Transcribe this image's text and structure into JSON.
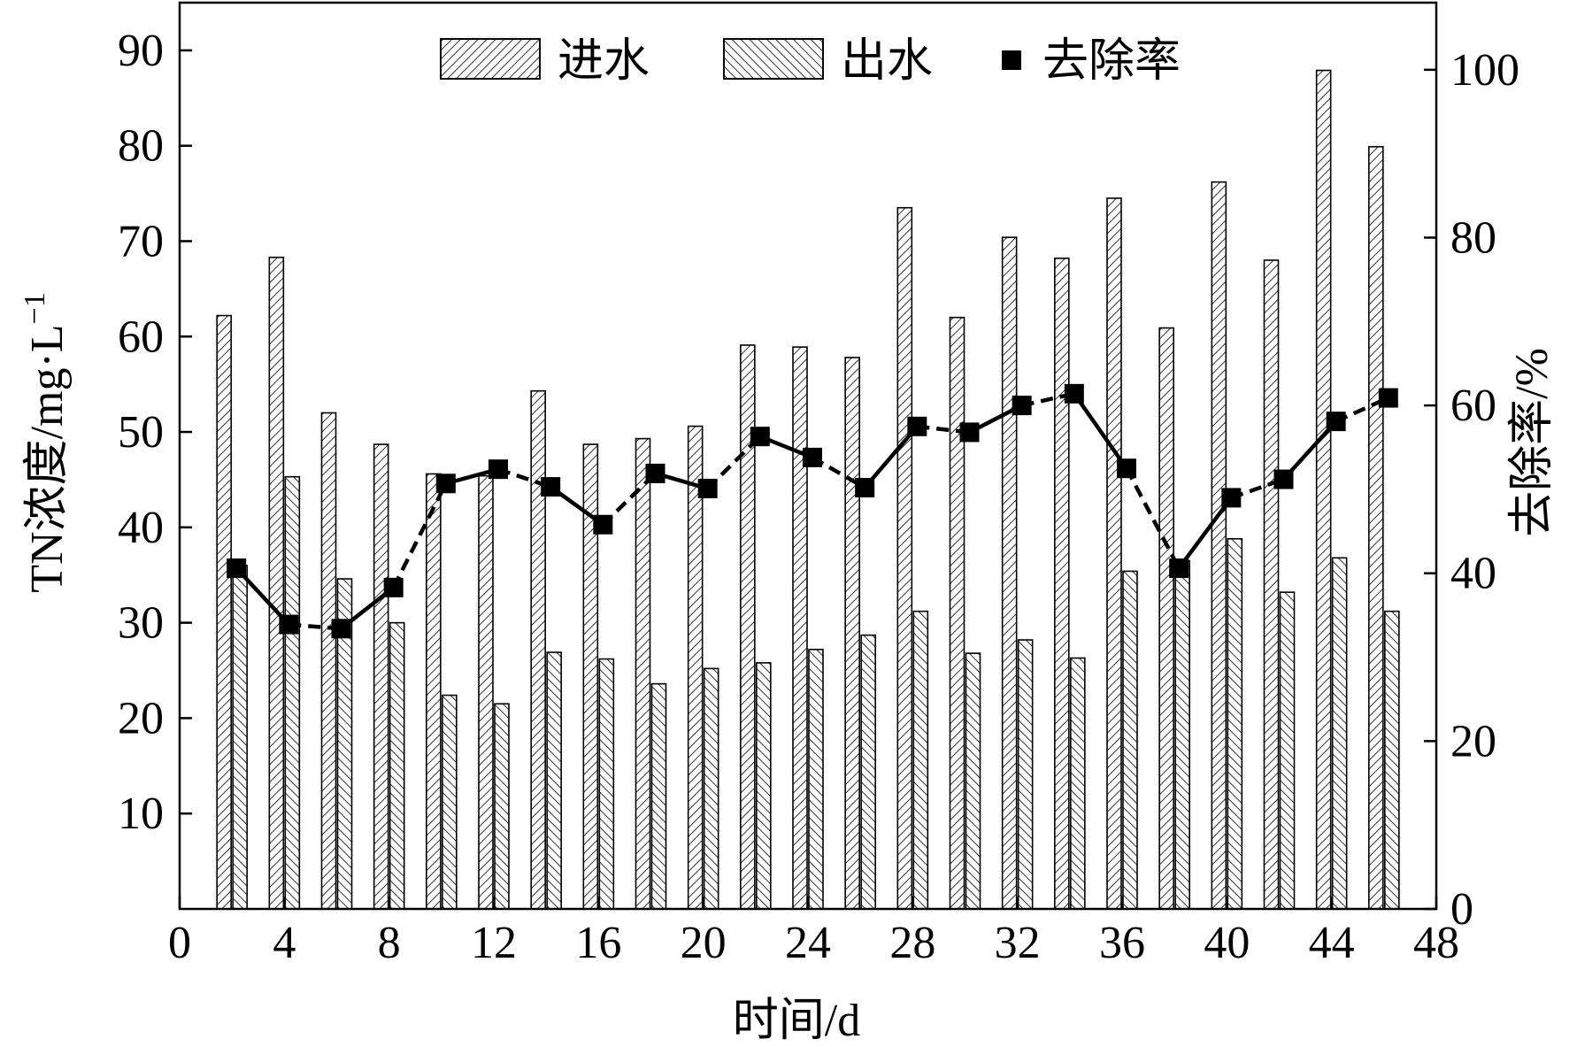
{
  "chart_data": {
    "type": "bar",
    "title": "",
    "xlabel": "时间/d",
    "ylabel": "TN浓度/mg·L",
    "ylabel_sup": "−1",
    "y2label": "去除率/%",
    "xlim": [
      0,
      48
    ],
    "ylim": [
      0,
      95
    ],
    "y2lim": [
      0,
      108
    ],
    "xticks": [
      0,
      4,
      8,
      12,
      16,
      20,
      24,
      28,
      32,
      36,
      40,
      44,
      48
    ],
    "xtick_labels": [
      "0",
      "4",
      "8",
      "12",
      "16",
      "20",
      "24",
      "28",
      "32",
      "36",
      "40",
      "44",
      "48"
    ],
    "yticks": [
      10,
      20,
      30,
      40,
      50,
      60,
      70,
      80,
      90
    ],
    "ytick_labels": [
      "10",
      "20",
      "30",
      "40",
      "50",
      "60",
      "70",
      "80",
      "90"
    ],
    "y2ticks": [
      0,
      20,
      40,
      60,
      80,
      100
    ],
    "y2tick_labels": [
      "0",
      "20",
      "40",
      "60",
      "80",
      "100"
    ],
    "legend": {
      "position": "top-center",
      "entries": [
        "进水",
        "出水",
        "去除率"
      ]
    },
    "grid": false,
    "x": [
      2,
      4,
      6,
      8,
      10,
      12,
      14,
      16,
      18,
      20,
      22,
      24,
      26,
      28,
      30,
      32,
      34,
      36,
      38,
      40,
      42,
      44,
      46
    ],
    "series": [
      {
        "name": "进水",
        "type": "bar",
        "pattern": "forward-hatch",
        "values": [
          62.2,
          68.3,
          52.0,
          48.7,
          45.6,
          45.4,
          54.3,
          48.7,
          49.3,
          50.6,
          59.1,
          58.9,
          57.8,
          73.5,
          62.0,
          70.4,
          68.2,
          74.5,
          60.9,
          76.2,
          68.0,
          87.9,
          79.9
        ]
      },
      {
        "name": "出水",
        "type": "bar",
        "pattern": "back-hatch",
        "values": [
          36.0,
          45.3,
          34.6,
          30.0,
          22.4,
          21.5,
          26.9,
          26.2,
          23.6,
          25.2,
          25.8,
          27.2,
          28.7,
          31.2,
          26.8,
          28.2,
          26.3,
          35.4,
          36.5,
          38.8,
          33.2,
          36.8,
          31.2
        ]
      },
      {
        "name": "去除率",
        "type": "line",
        "axis": "right",
        "marker": "square",
        "line_style": "dashed-solid",
        "values": [
          40.6,
          33.9,
          33.4,
          38.3,
          50.7,
          52.4,
          50.3,
          45.8,
          51.9,
          50.1,
          56.3,
          53.8,
          50.2,
          57.5,
          56.8,
          60.0,
          61.4,
          52.5,
          40.6,
          49.0,
          51.2,
          58.1,
          60.9
        ]
      }
    ]
  }
}
